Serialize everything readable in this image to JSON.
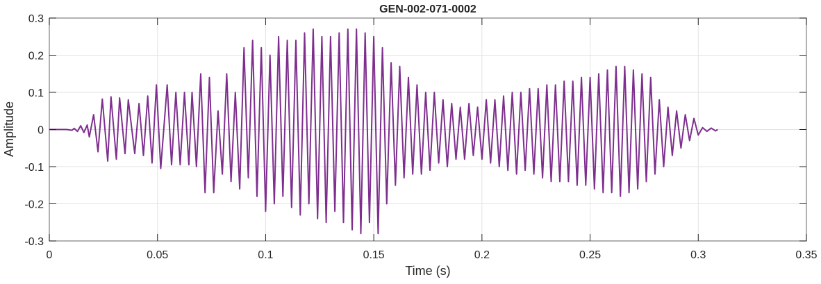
{
  "chart_data": {
    "type": "line",
    "title": "GEN-002-071-0002",
    "xlabel": "Time (s)",
    "ylabel": "Amplitude",
    "xlim": [
      0,
      0.35
    ],
    "ylim": [
      -0.3,
      0.3
    ],
    "grid": true,
    "xticks": [
      0,
      0.05,
      0.1,
      0.15,
      0.2,
      0.25,
      0.3,
      0.35
    ],
    "xtick_labels": [
      "0",
      "0.05",
      "0.1",
      "0.15",
      "0.2",
      "0.25",
      "0.3",
      "0.35"
    ],
    "yticks": [
      0.3,
      0.2,
      0.1,
      0,
      -0.1,
      -0.2,
      -0.3
    ],
    "ytick_labels": [
      "0.3",
      "0.2",
      "0.1",
      "0",
      "-0.1",
      "-0.2",
      "-0.3"
    ],
    "series": [
      {
        "name": "waveform",
        "color": "#7E2F8E",
        "points": [
          [
            0,
            0
          ],
          [
            0.008,
            0
          ],
          [
            0.0105,
            -0.002
          ],
          [
            0.0115,
            0.003
          ],
          [
            0.013,
            -0.005
          ],
          [
            0.0145,
            0.01
          ],
          [
            0.016,
            -0.008
          ],
          [
            0.0175,
            0.012
          ],
          [
            0.0185,
            -0.02
          ],
          [
            0.0205,
            0.04
          ],
          [
            0.0225,
            -0.06
          ],
          [
            0.0245,
            0.082
          ],
          [
            0.027,
            -0.085
          ],
          [
            0.0285,
            0.088
          ],
          [
            0.031,
            -0.08
          ],
          [
            0.0325,
            0.085
          ],
          [
            0.035,
            -0.065
          ],
          [
            0.0365,
            0.08
          ],
          [
            0.0395,
            -0.065
          ],
          [
            0.0415,
            0.07
          ],
          [
            0.0435,
            -0.07
          ],
          [
            0.0455,
            0.09
          ],
          [
            0.0475,
            -0.09
          ],
          [
            0.0495,
            0.12
          ],
          [
            0.0515,
            -0.105
          ],
          [
            0.0545,
            0.12
          ],
          [
            0.0565,
            -0.095
          ],
          [
            0.0585,
            0.1
          ],
          [
            0.0605,
            -0.095
          ],
          [
            0.0625,
            0.1
          ],
          [
            0.0645,
            -0.095
          ],
          [
            0.066,
            0.1
          ],
          [
            0.068,
            -0.1
          ],
          [
            0.07,
            0.15
          ],
          [
            0.072,
            -0.17
          ],
          [
            0.074,
            0.14
          ],
          [
            0.076,
            -0.17
          ],
          [
            0.078,
            0.05
          ],
          [
            0.08,
            -0.12
          ],
          [
            0.082,
            0.15
          ],
          [
            0.084,
            -0.14
          ],
          [
            0.086,
            0.1
          ],
          [
            0.088,
            -0.16
          ],
          [
            0.09,
            0.22
          ],
          [
            0.092,
            -0.13
          ],
          [
            0.094,
            0.24
          ],
          [
            0.096,
            -0.18
          ],
          [
            0.098,
            0.22
          ],
          [
            0.1,
            -0.22
          ],
          [
            0.102,
            0.2
          ],
          [
            0.104,
            -0.2
          ],
          [
            0.106,
            0.25
          ],
          [
            0.108,
            -0.18
          ],
          [
            0.11,
            0.24
          ],
          [
            0.112,
            -0.21
          ],
          [
            0.114,
            0.24
          ],
          [
            0.116,
            -0.23
          ],
          [
            0.118,
            0.26
          ],
          [
            0.12,
            -0.2
          ],
          [
            0.122,
            0.27
          ],
          [
            0.124,
            -0.24
          ],
          [
            0.126,
            0.25
          ],
          [
            0.128,
            -0.25
          ],
          [
            0.13,
            0.25
          ],
          [
            0.132,
            -0.22
          ],
          [
            0.134,
            0.26
          ],
          [
            0.136,
            -0.25
          ],
          [
            0.138,
            0.27
          ],
          [
            0.14,
            -0.27
          ],
          [
            0.142,
            0.27
          ],
          [
            0.144,
            -0.28
          ],
          [
            0.146,
            0.26
          ],
          [
            0.148,
            -0.25
          ],
          [
            0.15,
            0.25
          ],
          [
            0.152,
            -0.28
          ],
          [
            0.154,
            0.22
          ],
          [
            0.156,
            -0.2
          ],
          [
            0.158,
            0.18
          ],
          [
            0.16,
            -0.15
          ],
          [
            0.162,
            0.17
          ],
          [
            0.164,
            -0.13
          ],
          [
            0.166,
            0.14
          ],
          [
            0.168,
            -0.12
          ],
          [
            0.17,
            0.12
          ],
          [
            0.172,
            -0.12
          ],
          [
            0.174,
            0.1
          ],
          [
            0.176,
            -0.11
          ],
          [
            0.178,
            0.1
          ],
          [
            0.18,
            -0.09
          ],
          [
            0.182,
            0.08
          ],
          [
            0.184,
            -0.1
          ],
          [
            0.186,
            0.07
          ],
          [
            0.188,
            -0.08
          ],
          [
            0.19,
            0.06
          ],
          [
            0.192,
            -0.08
          ],
          [
            0.194,
            0.07
          ],
          [
            0.196,
            -0.07
          ],
          [
            0.198,
            0.06
          ],
          [
            0.2,
            -0.08
          ],
          [
            0.202,
            0.08
          ],
          [
            0.204,
            -0.09
          ],
          [
            0.206,
            0.08
          ],
          [
            0.208,
            -0.1
          ],
          [
            0.21,
            0.09
          ],
          [
            0.212,
            -0.11
          ],
          [
            0.214,
            0.1
          ],
          [
            0.216,
            -0.12
          ],
          [
            0.218,
            0.1
          ],
          [
            0.22,
            -0.11
          ],
          [
            0.222,
            0.11
          ],
          [
            0.224,
            -0.12
          ],
          [
            0.226,
            0.11
          ],
          [
            0.228,
            -0.13
          ],
          [
            0.23,
            0.12
          ],
          [
            0.232,
            -0.14
          ],
          [
            0.234,
            0.12
          ],
          [
            0.236,
            -0.14
          ],
          [
            0.238,
            0.13
          ],
          [
            0.24,
            -0.14
          ],
          [
            0.242,
            0.13
          ],
          [
            0.244,
            -0.15
          ],
          [
            0.246,
            0.14
          ],
          [
            0.248,
            -0.15
          ],
          [
            0.25,
            0.14
          ],
          [
            0.252,
            -0.16
          ],
          [
            0.254,
            0.15
          ],
          [
            0.256,
            -0.17
          ],
          [
            0.258,
            0.16
          ],
          [
            0.26,
            -0.17
          ],
          [
            0.262,
            0.17
          ],
          [
            0.264,
            -0.18
          ],
          [
            0.266,
            0.17
          ],
          [
            0.268,
            -0.17
          ],
          [
            0.27,
            0.16
          ],
          [
            0.272,
            -0.16
          ],
          [
            0.274,
            0.15
          ],
          [
            0.276,
            -0.14
          ],
          [
            0.278,
            0.14
          ],
          [
            0.28,
            -0.12
          ],
          [
            0.282,
            0.08
          ],
          [
            0.284,
            -0.1
          ],
          [
            0.286,
            0.06
          ],
          [
            0.288,
            -0.07
          ],
          [
            0.29,
            0.05
          ],
          [
            0.292,
            -0.05
          ],
          [
            0.294,
            0.04
          ],
          [
            0.296,
            -0.03
          ],
          [
            0.298,
            0.03
          ],
          [
            0.3,
            -0.015
          ],
          [
            0.302,
            0.005
          ],
          [
            0.304,
            -0.005
          ],
          [
            0.306,
            0.004
          ],
          [
            0.308,
            -0.004
          ],
          [
            0.309,
            0
          ]
        ]
      }
    ]
  }
}
